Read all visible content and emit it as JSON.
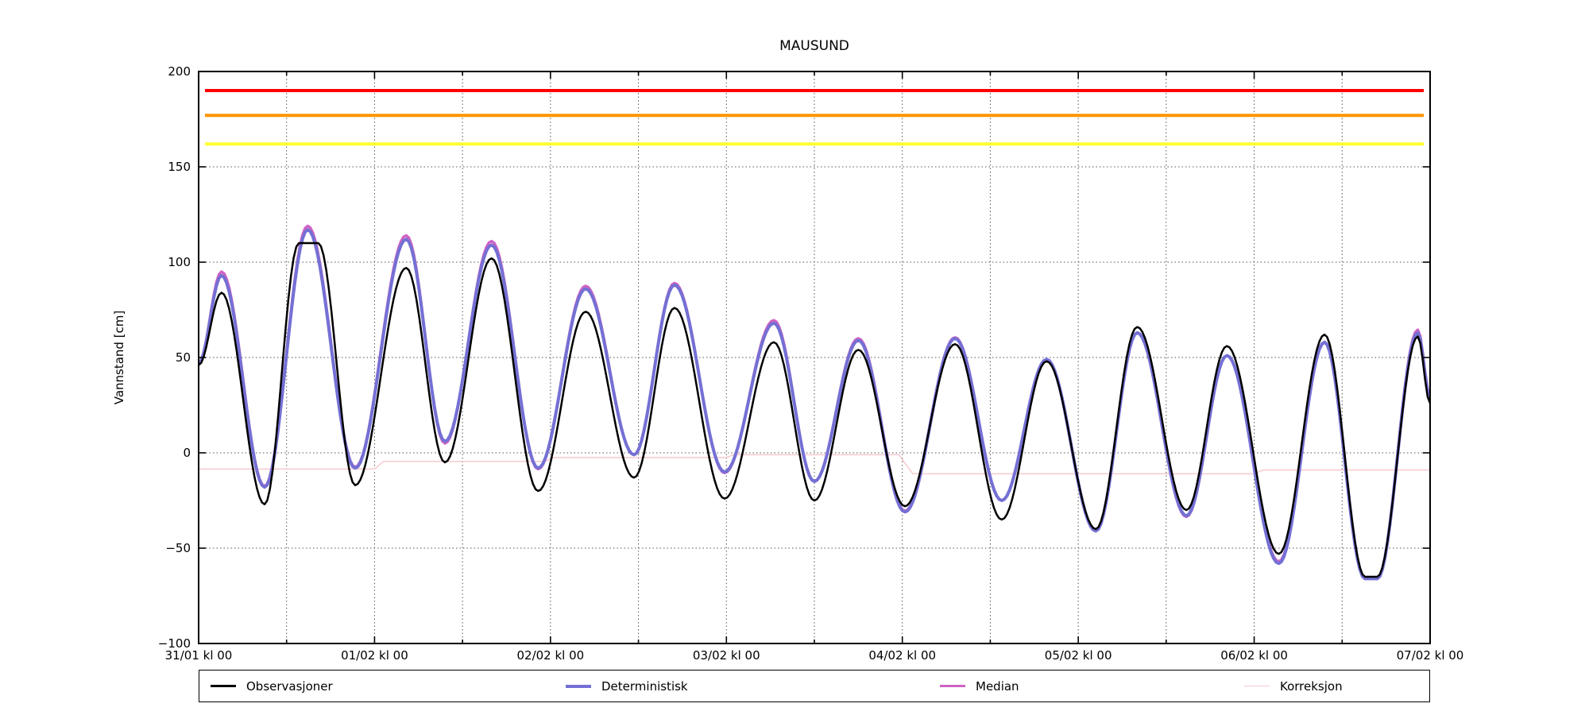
{
  "title": "MAUSUND",
  "axes": {
    "ylabel": "Vannstand [cm]",
    "ylim": [
      -100,
      200
    ],
    "yticks": [
      200,
      150,
      100,
      50,
      0,
      -50,
      -100
    ],
    "ytick_labels": [
      "200",
      "150",
      "100",
      "50",
      "0",
      "−50",
      "−100"
    ],
    "xlim_days": [
      0,
      7
    ],
    "xtick_labels": [
      "31/01 kl 00",
      "01/02 kl 00",
      "02/02 kl 00",
      "03/02 kl 00",
      "04/02 kl 00",
      "05/02 kl 00",
      "06/02 kl 00",
      "07/02 kl 00"
    ],
    "grid": "dotted, horizontal every 50 cm, vertical every 12 h"
  },
  "legend": {
    "entries": [
      {
        "label": "Observasjoner",
        "color": "#000000",
        "thickness": 2.5
      },
      {
        "label": "Deterministisk",
        "color": "#7470d4",
        "thickness": 4
      },
      {
        "label": "Median",
        "color": "#cf62c4",
        "thickness": 3.5
      },
      {
        "label": "Korreksjon",
        "color": "#f7c9ce",
        "thickness": 1.5
      }
    ]
  },
  "chart_data": {
    "type": "line",
    "title": "MAUSUND",
    "xlabel": "",
    "ylabel": "Vannstand [cm]",
    "x_unit": "days since 31/01 kl 00",
    "ylim": [
      -100,
      200
    ],
    "thresholds": [
      {
        "name": "red-warning-level",
        "value": 190,
        "color": "#ff0000",
        "width": 4
      },
      {
        "name": "orange-warning-level",
        "value": 177,
        "color": "#ff9400",
        "width": 4
      },
      {
        "name": "yellow-warning-level",
        "value": 162,
        "color": "#ffff2e",
        "width": 4
      }
    ],
    "series": [
      {
        "name": "Observasjoner",
        "color": "#000000",
        "width": 2.5,
        "interpolation": "tidal-cosine",
        "extremes": [
          [
            0,
            46
          ],
          [
            0.13,
            84
          ],
          [
            0.375,
            -27
          ],
          [
            0.57,
            110
          ],
          [
            0.68,
            110
          ],
          [
            0.89,
            -17
          ],
          [
            1.18,
            97
          ],
          [
            1.4,
            -5
          ],
          [
            1.665,
            102
          ],
          [
            1.93,
            -20
          ],
          [
            2.2,
            74
          ],
          [
            2.475,
            -13
          ],
          [
            2.705,
            76
          ],
          [
            2.99,
            -24
          ],
          [
            3.27,
            58
          ],
          [
            3.5,
            -25
          ],
          [
            3.75,
            54
          ],
          [
            4.015,
            -28
          ],
          [
            4.3,
            57
          ],
          [
            4.565,
            -35
          ],
          [
            4.82,
            48
          ],
          [
            5.1,
            -40
          ],
          [
            5.335,
            66
          ],
          [
            5.615,
            -30
          ],
          [
            5.845,
            56
          ],
          [
            6.14,
            -53
          ],
          [
            6.4,
            62
          ],
          [
            6.63,
            -65
          ],
          [
            6.7,
            -65
          ],
          [
            6.93,
            61
          ],
          [
            7,
            26
          ]
        ]
      },
      {
        "name": "Deterministisk",
        "color": "#7470d4",
        "width": 4,
        "interpolation": "tidal-cosine",
        "extremes": [
          [
            0,
            47
          ],
          [
            0.13,
            93
          ],
          [
            0.375,
            -18
          ],
          [
            0.62,
            117
          ],
          [
            0.89,
            -8
          ],
          [
            1.18,
            112
          ],
          [
            1.4,
            6
          ],
          [
            1.665,
            109
          ],
          [
            1.93,
            -8
          ],
          [
            2.2,
            86
          ],
          [
            2.475,
            -1
          ],
          [
            2.705,
            88
          ],
          [
            2.99,
            -10
          ],
          [
            3.27,
            68
          ],
          [
            3.5,
            -15
          ],
          [
            3.75,
            59
          ],
          [
            4.015,
            -31
          ],
          [
            4.3,
            60
          ],
          [
            4.565,
            -25
          ],
          [
            4.82,
            49
          ],
          [
            5.1,
            -41
          ],
          [
            5.335,
            63
          ],
          [
            5.615,
            -33
          ],
          [
            5.845,
            51
          ],
          [
            6.14,
            -58
          ],
          [
            6.4,
            58
          ],
          [
            6.63,
            -66
          ],
          [
            6.7,
            -66
          ],
          [
            6.93,
            63
          ],
          [
            7,
            29
          ]
        ]
      },
      {
        "name": "Median",
        "color": "#cf62c4",
        "width": 3.5,
        "interpolation": "tidal-cosine",
        "extremes": [
          [
            0,
            47
          ],
          [
            0.13,
            95
          ],
          [
            0.375,
            -17.5
          ],
          [
            0.62,
            119
          ],
          [
            0.89,
            -7.5
          ],
          [
            1.18,
            114
          ],
          [
            1.4,
            5
          ],
          [
            1.665,
            111
          ],
          [
            1.93,
            -8.5
          ],
          [
            2.2,
            87.5
          ],
          [
            2.475,
            -1
          ],
          [
            2.705,
            89
          ],
          [
            2.99,
            -10.5
          ],
          [
            3.27,
            69.5
          ],
          [
            3.5,
            -15
          ],
          [
            3.75,
            60
          ],
          [
            4.015,
            -30.5
          ],
          [
            4.3,
            60.5
          ],
          [
            4.565,
            -25
          ],
          [
            4.82,
            49
          ],
          [
            5.1,
            -41
          ],
          [
            5.335,
            63
          ],
          [
            5.615,
            -33.5
          ],
          [
            5.845,
            51
          ],
          [
            6.14,
            -57
          ],
          [
            6.4,
            58
          ],
          [
            6.63,
            -66
          ],
          [
            6.7,
            -66
          ],
          [
            6.93,
            64.5
          ],
          [
            7,
            30
          ]
        ]
      },
      {
        "name": "Korreksjon",
        "color": "#f7c9ce",
        "width": 1.5,
        "interpolation": "linear",
        "points": [
          [
            0,
            -8.5
          ],
          [
            1.0,
            -8.5
          ],
          [
            1.05,
            -4.5
          ],
          [
            1.97,
            -4.5
          ],
          [
            2.02,
            -2.5
          ],
          [
            3.0,
            -2.5
          ],
          [
            3.04,
            -1
          ],
          [
            3.98,
            -1
          ],
          [
            4.06,
            -11
          ],
          [
            6.0,
            -11
          ],
          [
            6.05,
            -9
          ],
          [
            7,
            -9
          ]
        ]
      }
    ]
  }
}
